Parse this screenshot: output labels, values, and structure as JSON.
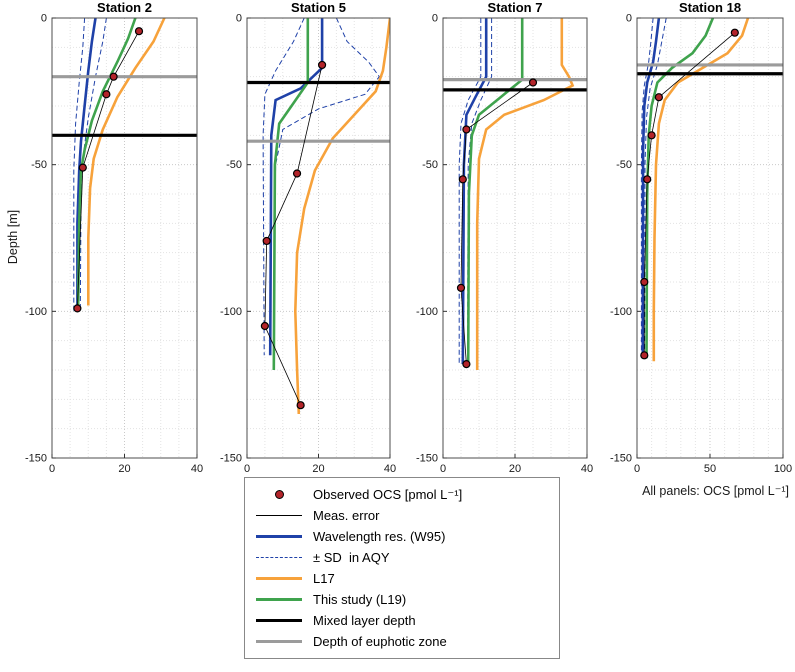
{
  "colors": {
    "blue": "#1F41A8",
    "orange": "#F7A23B",
    "green": "#3FA34D",
    "black": "#000000",
    "gray": "#9B9B9B",
    "red": "#B3242A",
    "grid_major": "#c9c9c9",
    "grid_minor": "#e3e3e3"
  },
  "chart_data": {
    "type": "line",
    "ylabel": "Depth [m]",
    "xlabel": "All panels: OCS [pmol L⁻¹]",
    "panels": [
      {
        "title": "Station 2",
        "xlim": [
          0,
          40
        ],
        "xticks": [
          0,
          20,
          40
        ],
        "minor_x": 5,
        "ylim": [
          -150,
          0
        ],
        "yticks": [
          0,
          -50,
          -100,
          -150
        ],
        "euphotic_depth": -20,
        "mixed_layer_depth": -40,
        "observed": [
          [
            24,
            -4.5
          ],
          [
            17,
            -20
          ],
          [
            15,
            -26
          ],
          [
            8.5,
            -51
          ],
          [
            7,
            -99
          ]
        ],
        "w95": [
          [
            12,
            0
          ],
          [
            11,
            -8
          ],
          [
            10,
            -18
          ],
          [
            9,
            -30
          ],
          [
            8,
            -42
          ],
          [
            7.5,
            -52
          ],
          [
            7,
            -70
          ],
          [
            7,
            -100
          ]
        ],
        "sd_high": [
          [
            15,
            0
          ],
          [
            14,
            -8
          ],
          [
            12,
            -20
          ],
          [
            10,
            -34
          ],
          [
            8.5,
            -48
          ],
          [
            8,
            -62
          ],
          [
            7.8,
            -100
          ]
        ],
        "sd_low": [
          [
            9,
            0
          ],
          [
            8.5,
            -10
          ],
          [
            7.5,
            -22
          ],
          [
            6.5,
            -36
          ],
          [
            6,
            -52
          ],
          [
            6,
            -100
          ]
        ],
        "l17": [
          [
            31,
            0
          ],
          [
            28,
            -8
          ],
          [
            23,
            -17
          ],
          [
            18,
            -27
          ],
          [
            14,
            -38
          ],
          [
            11.5,
            -48
          ],
          [
            10.5,
            -58
          ],
          [
            10,
            -75
          ],
          [
            10,
            -98
          ]
        ],
        "l19": [
          [
            23,
            0
          ],
          [
            21,
            -7
          ],
          [
            18,
            -15
          ],
          [
            14,
            -25
          ],
          [
            11,
            -35
          ],
          [
            9,
            -45
          ],
          [
            8,
            -52
          ],
          [
            7.5,
            -70
          ],
          [
            7.2,
            -100
          ]
        ]
      },
      {
        "title": "Station 5",
        "xlim": [
          0,
          40
        ],
        "xticks": [
          0,
          20,
          40
        ],
        "minor_x": 5,
        "ylim": [
          -150,
          0
        ],
        "yticks": [
          0,
          -50,
          -100,
          -150
        ],
        "euphotic_depth": -42,
        "mixed_layer_depth": -22,
        "observed": [
          [
            21,
            -16
          ],
          [
            14,
            -53
          ],
          [
            5.5,
            -76
          ],
          [
            5,
            -105
          ],
          [
            15,
            -132
          ]
        ],
        "w95": [
          [
            21,
            0
          ],
          [
            21,
            -17
          ],
          [
            15,
            -24
          ],
          [
            8,
            -28
          ],
          [
            6.8,
            -40
          ],
          [
            6.5,
            -115
          ]
        ],
        "sd_high": [
          [
            25,
            0
          ],
          [
            28,
            -8
          ],
          [
            34,
            -15
          ],
          [
            37,
            -20
          ],
          [
            33,
            -26
          ],
          [
            20,
            -31
          ],
          [
            10,
            -38
          ],
          [
            8,
            -50
          ],
          [
            7.5,
            -115
          ]
        ],
        "sd_low": [
          [
            16,
            0
          ],
          [
            13,
            -8
          ],
          [
            8,
            -18
          ],
          [
            5,
            -26
          ],
          [
            4.5,
            -40
          ],
          [
            4.8,
            -115
          ]
        ],
        "l17": [
          [
            40,
            0
          ],
          [
            39,
            -10
          ],
          [
            38,
            -18
          ],
          [
            36,
            -25
          ],
          [
            30,
            -33
          ],
          [
            24,
            -41
          ],
          [
            19,
            -52
          ],
          [
            16,
            -65
          ],
          [
            14,
            -80
          ],
          [
            13.5,
            -100
          ],
          [
            14,
            -120
          ],
          [
            14.5,
            -135
          ]
        ],
        "l19": [
          [
            17,
            0
          ],
          [
            17,
            -22
          ],
          [
            13,
            -29
          ],
          [
            9,
            -36
          ],
          [
            7.8,
            -50
          ],
          [
            7.5,
            -120
          ]
        ]
      },
      {
        "title": "Station 7",
        "xlim": [
          0,
          40
        ],
        "xticks": [
          0,
          20,
          40
        ],
        "minor_x": 5,
        "ylim": [
          -150,
          0
        ],
        "yticks": [
          0,
          -50,
          -100,
          -150
        ],
        "euphotic_depth": -21,
        "mixed_layer_depth": -24.5,
        "observed": [
          [
            25,
            -22
          ],
          [
            6.5,
            -38
          ],
          [
            5.5,
            -55
          ],
          [
            5,
            -92
          ],
          [
            6.5,
            -118
          ]
        ],
        "w95": [
          [
            12,
            0
          ],
          [
            12,
            -20
          ],
          [
            9,
            -27
          ],
          [
            6.5,
            -33
          ],
          [
            5.8,
            -50
          ],
          [
            5.5,
            -118
          ]
        ],
        "sd_high": [
          [
            13.5,
            0
          ],
          [
            13.5,
            -20
          ],
          [
            10.5,
            -28
          ],
          [
            8,
            -36
          ],
          [
            7,
            -50
          ],
          [
            6.8,
            -118
          ]
        ],
        "sd_low": [
          [
            10.5,
            0
          ],
          [
            10.5,
            -20
          ],
          [
            7,
            -28
          ],
          [
            5,
            -36
          ],
          [
            4.5,
            -50
          ],
          [
            4.5,
            -118
          ]
        ],
        "l17": [
          [
            33,
            0
          ],
          [
            33,
            -16
          ],
          [
            35,
            -20
          ],
          [
            36,
            -23
          ],
          [
            28,
            -28
          ],
          [
            17,
            -33
          ],
          [
            12,
            -38
          ],
          [
            10,
            -48
          ],
          [
            9.5,
            -70
          ],
          [
            9.5,
            -120
          ]
        ],
        "l19": [
          [
            22,
            0
          ],
          [
            22,
            -21
          ],
          [
            16,
            -27
          ],
          [
            10,
            -33
          ],
          [
            8,
            -40
          ],
          [
            7.2,
            -60
          ],
          [
            7,
            -119
          ]
        ]
      },
      {
        "title": "Station 18",
        "xlim": [
          0,
          100
        ],
        "xticks": [
          0,
          50,
          100
        ],
        "minor_x": 10,
        "ylim": [
          -150,
          0
        ],
        "yticks": [
          0,
          -50,
          -100,
          -150
        ],
        "euphotic_depth": -16,
        "mixed_layer_depth": -19,
        "observed": [
          [
            67,
            -5
          ],
          [
            15,
            -27
          ],
          [
            10,
            -40
          ],
          [
            7,
            -55
          ],
          [
            5,
            -90
          ],
          [
            5,
            -115
          ]
        ],
        "w95": [
          [
            15,
            0
          ],
          [
            13,
            -8
          ],
          [
            11,
            -15
          ],
          [
            7,
            -22
          ],
          [
            5,
            -30
          ],
          [
            4.2,
            -45
          ],
          [
            4,
            -115
          ]
        ],
        "sd_high": [
          [
            20,
            0
          ],
          [
            17,
            -8
          ],
          [
            14,
            -16
          ],
          [
            9,
            -24
          ],
          [
            6.5,
            -34
          ],
          [
            5.5,
            -50
          ],
          [
            5.2,
            -115
          ]
        ],
        "sd_low": [
          [
            11,
            0
          ],
          [
            9.5,
            -8
          ],
          [
            8,
            -15
          ],
          [
            5,
            -23
          ],
          [
            3.5,
            -32
          ],
          [
            3,
            -50
          ],
          [
            3,
            -115
          ]
        ],
        "l17": [
          [
            76,
            0
          ],
          [
            72,
            -6
          ],
          [
            62,
            -12
          ],
          [
            45,
            -17
          ],
          [
            28,
            -22
          ],
          [
            19,
            -28
          ],
          [
            15,
            -36
          ],
          [
            13,
            -50
          ],
          [
            12,
            -75
          ],
          [
            11.5,
            -100
          ],
          [
            11.5,
            -117
          ]
        ],
        "l19": [
          [
            52,
            0
          ],
          [
            47,
            -6
          ],
          [
            38,
            -12
          ],
          [
            24,
            -17
          ],
          [
            14,
            -22
          ],
          [
            10,
            -30
          ],
          [
            8,
            -40
          ],
          [
            7,
            -60
          ],
          [
            6.5,
            -116
          ]
        ]
      }
    ]
  },
  "legend": {
    "entries": [
      {
        "name": "observed-ocs",
        "swatch": "marker",
        "color": "red",
        "label": "Observed OCS [pmol L⁻¹]"
      },
      {
        "name": "meas-error",
        "swatch": "line",
        "weight": 1,
        "dash": false,
        "color": "black",
        "label": "Meas. error"
      },
      {
        "name": "w95",
        "swatch": "line",
        "weight": 3,
        "dash": false,
        "color": "blue",
        "label": "Wavelength res. (W95)"
      },
      {
        "name": "sd-aqy",
        "swatch": "line",
        "weight": 1.5,
        "dash": true,
        "color": "blue",
        "label": "± SD  in AQY"
      },
      {
        "name": "l17",
        "swatch": "line",
        "weight": 3,
        "dash": false,
        "color": "orange",
        "label": "L17"
      },
      {
        "name": "l19",
        "swatch": "line",
        "weight": 3,
        "dash": false,
        "color": "green",
        "label": "This study (L19)"
      },
      {
        "name": "mld",
        "swatch": "line",
        "weight": 3,
        "dash": false,
        "color": "black",
        "label": "Mixed layer depth"
      },
      {
        "name": "euphotic",
        "swatch": "line",
        "weight": 3,
        "dash": false,
        "color": "gray",
        "label": "Depth of euphotic zone"
      }
    ]
  }
}
